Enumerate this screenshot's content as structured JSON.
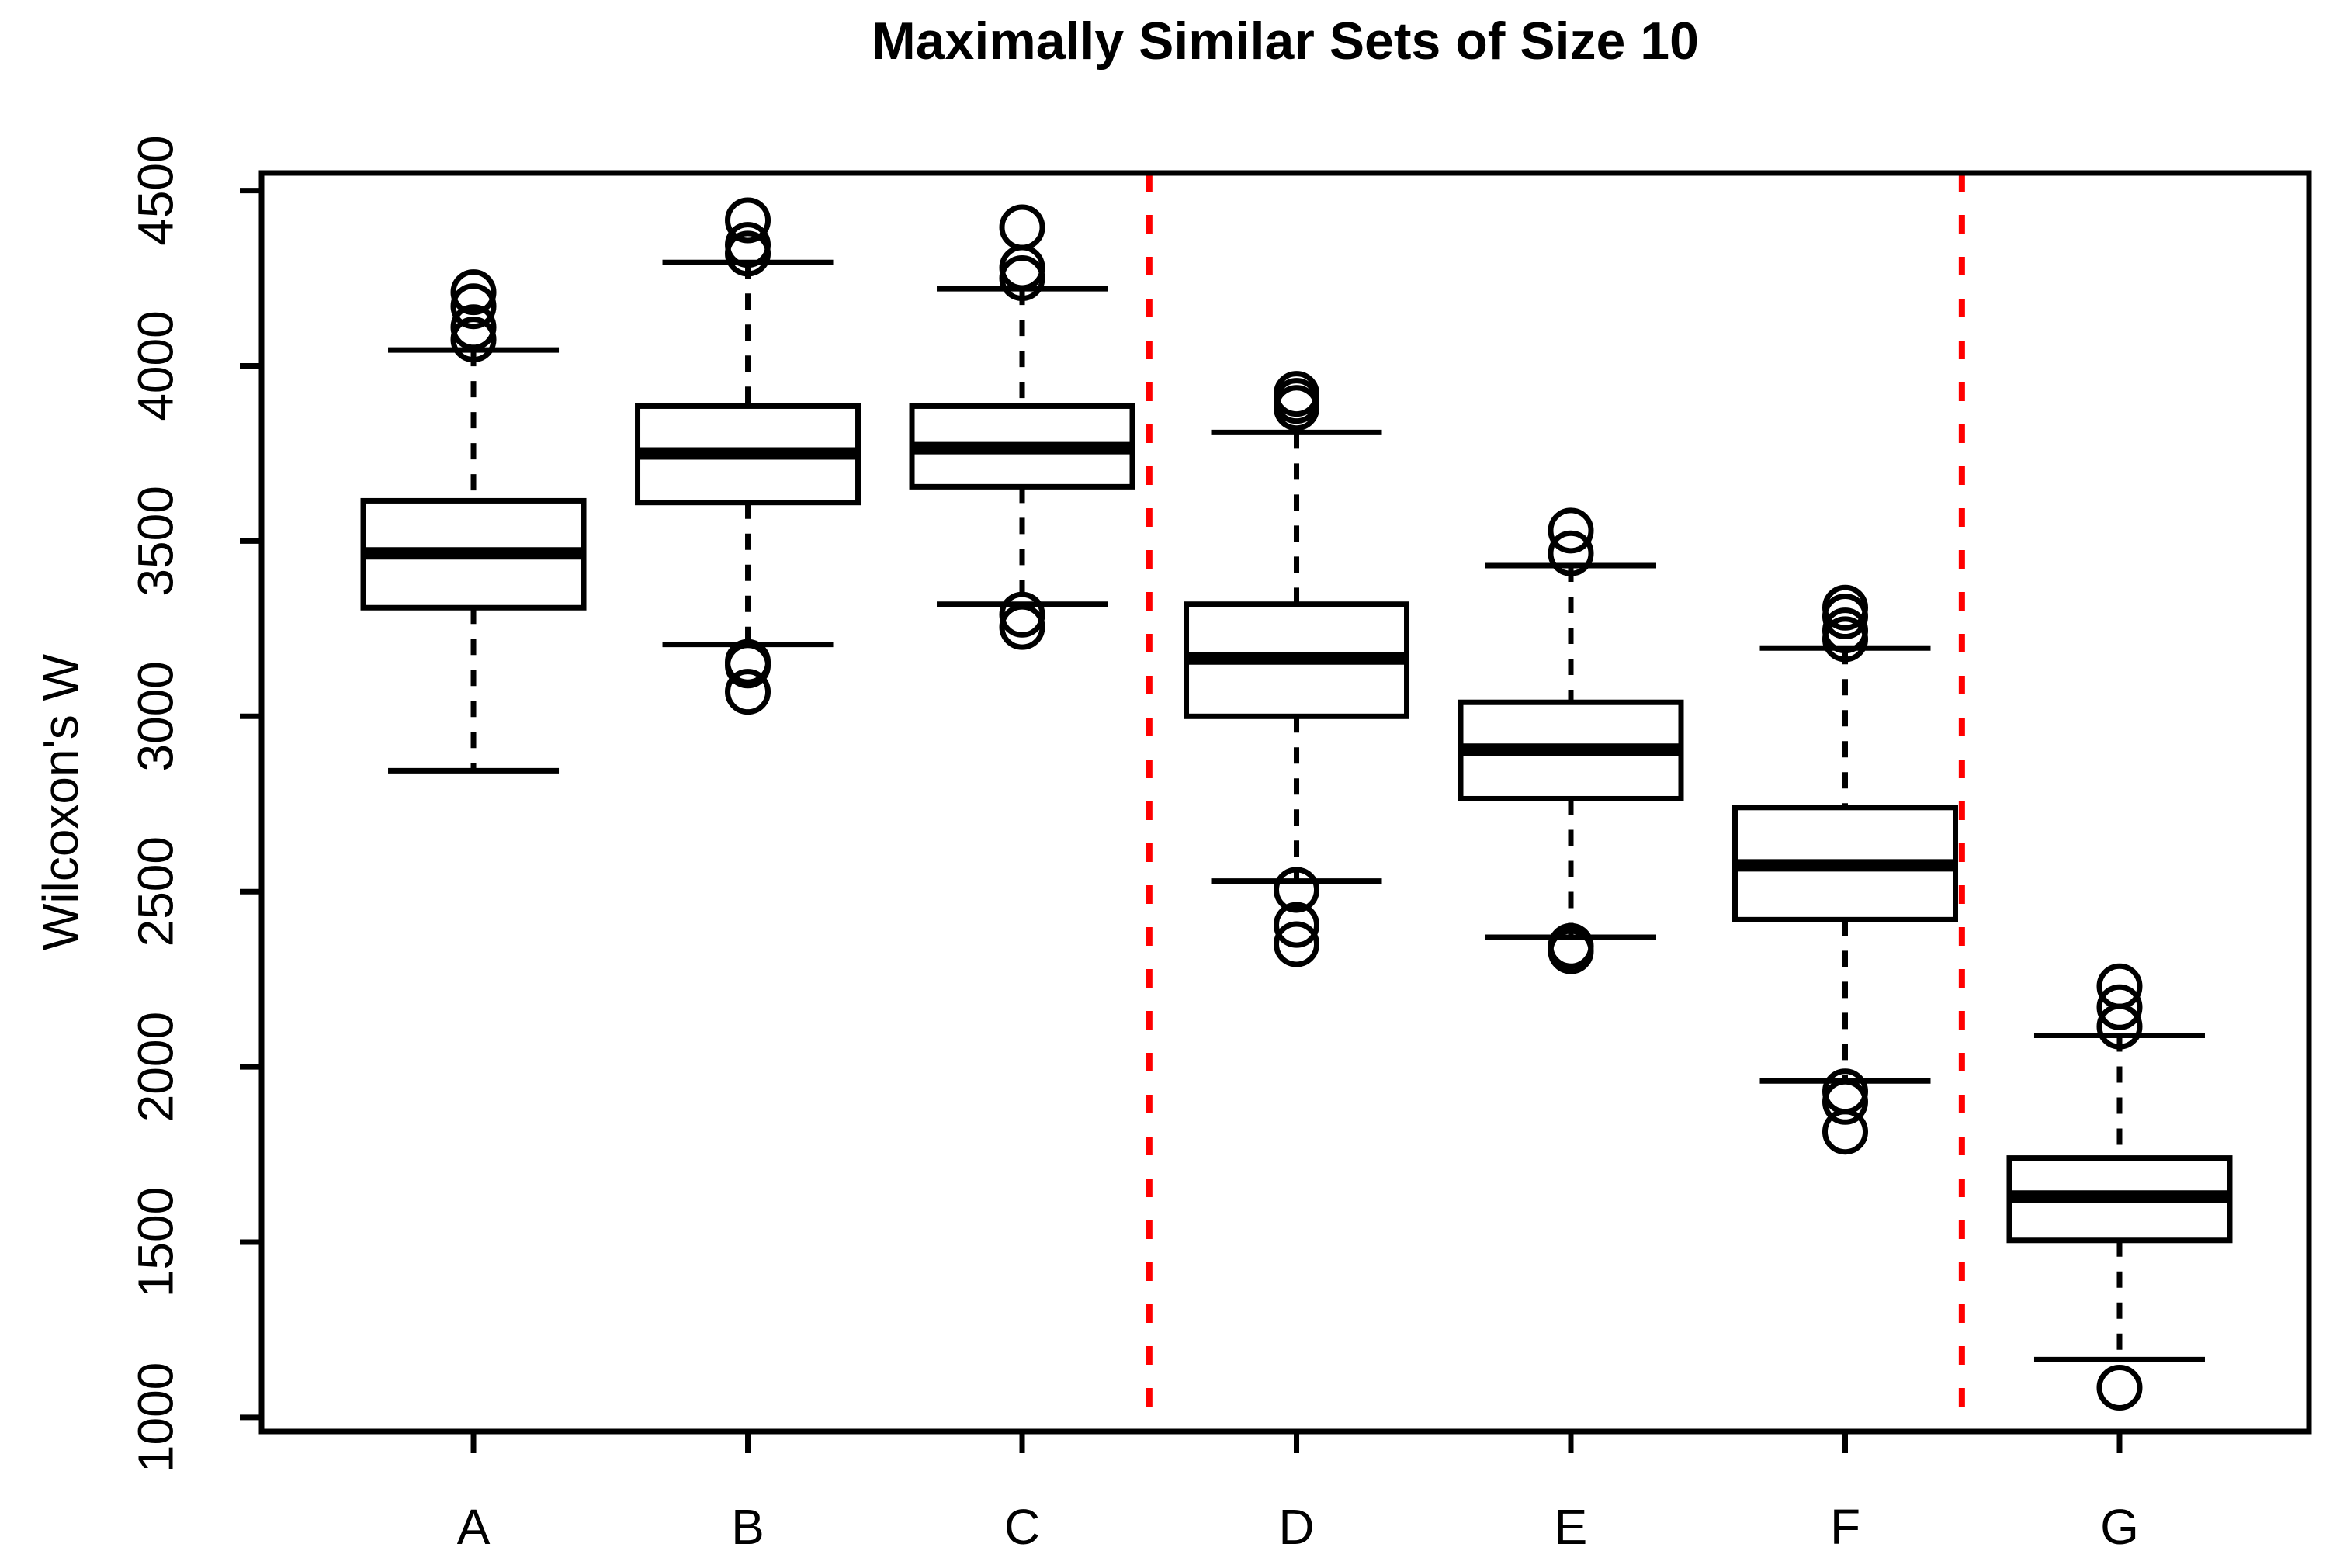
{
  "chart_data": {
    "type": "boxplot",
    "title": "Maximally Similar Sets of Size 10",
    "xlabel": "",
    "ylabel": "Wilcoxon's W",
    "ylim": [
      960,
      4550
    ],
    "y_ticks": [
      1000,
      1500,
      2000,
      2500,
      3000,
      3500,
      4000,
      4500
    ],
    "categories": [
      "A",
      "B",
      "C",
      "D",
      "E",
      "F",
      "G"
    ],
    "grid": false,
    "legend": "none",
    "boxes": [
      {
        "label": "A",
        "whisker_low": 2845,
        "q1": 3310,
        "median": 3465,
        "q3": 3615,
        "whisker_high": 4045,
        "outliers_low": [],
        "outliers_high": [
          4075,
          4110,
          4170,
          4210
        ]
      },
      {
        "label": "B",
        "whisker_low": 3205,
        "q1": 3610,
        "median": 3750,
        "q3": 3885,
        "whisker_high": 4295,
        "outliers_low": [
          3070,
          3145,
          3155
        ],
        "outliers_high": [
          4320,
          4345,
          4415
        ]
      },
      {
        "label": "C",
        "whisker_low": 3320,
        "q1": 3655,
        "median": 3765,
        "q3": 3885,
        "whisker_high": 4220,
        "outliers_low": [
          3255,
          3290
        ],
        "outliers_high": [
          4250,
          4280,
          4395
        ]
      },
      {
        "label": "D",
        "whisker_low": 2530,
        "q1": 3000,
        "median": 3165,
        "q3": 3320,
        "whisker_high": 3810,
        "outliers_low": [
          2350,
          2405,
          2505
        ],
        "outliers_high": [
          3880,
          3900,
          3920
        ]
      },
      {
        "label": "E",
        "whisker_low": 2370,
        "q1": 2765,
        "median": 2905,
        "q3": 3040,
        "whisker_high": 3430,
        "outliers_low": [
          2330,
          2345
        ],
        "outliers_high": [
          3465,
          3530
        ]
      },
      {
        "label": "F",
        "whisker_low": 1960,
        "q1": 2420,
        "median": 2575,
        "q3": 2740,
        "whisker_high": 3195,
        "outliers_low": [
          1815,
          1900,
          1930
        ],
        "outliers_high": [
          3220,
          3245,
          3285,
          3310
        ]
      },
      {
        "label": "G",
        "whisker_low": 1165,
        "q1": 1505,
        "median": 1630,
        "q3": 1740,
        "whisker_high": 2090,
        "outliers_low": [
          1085
        ],
        "outliers_high": [
          2115,
          2170,
          2230
        ]
      }
    ],
    "separators": [
      {
        "between": [
          "C",
          "D"
        ],
        "style": "dashed",
        "color": "#FF0000"
      },
      {
        "between": [
          "F",
          "G"
        ],
        "style": "dashed",
        "color": "#FF0000"
      }
    ],
    "colors": {
      "box_stroke": "#000000",
      "box_fill": "#FFFFFF",
      "separator": "#FF0000",
      "background": "#FFFFFF"
    }
  }
}
